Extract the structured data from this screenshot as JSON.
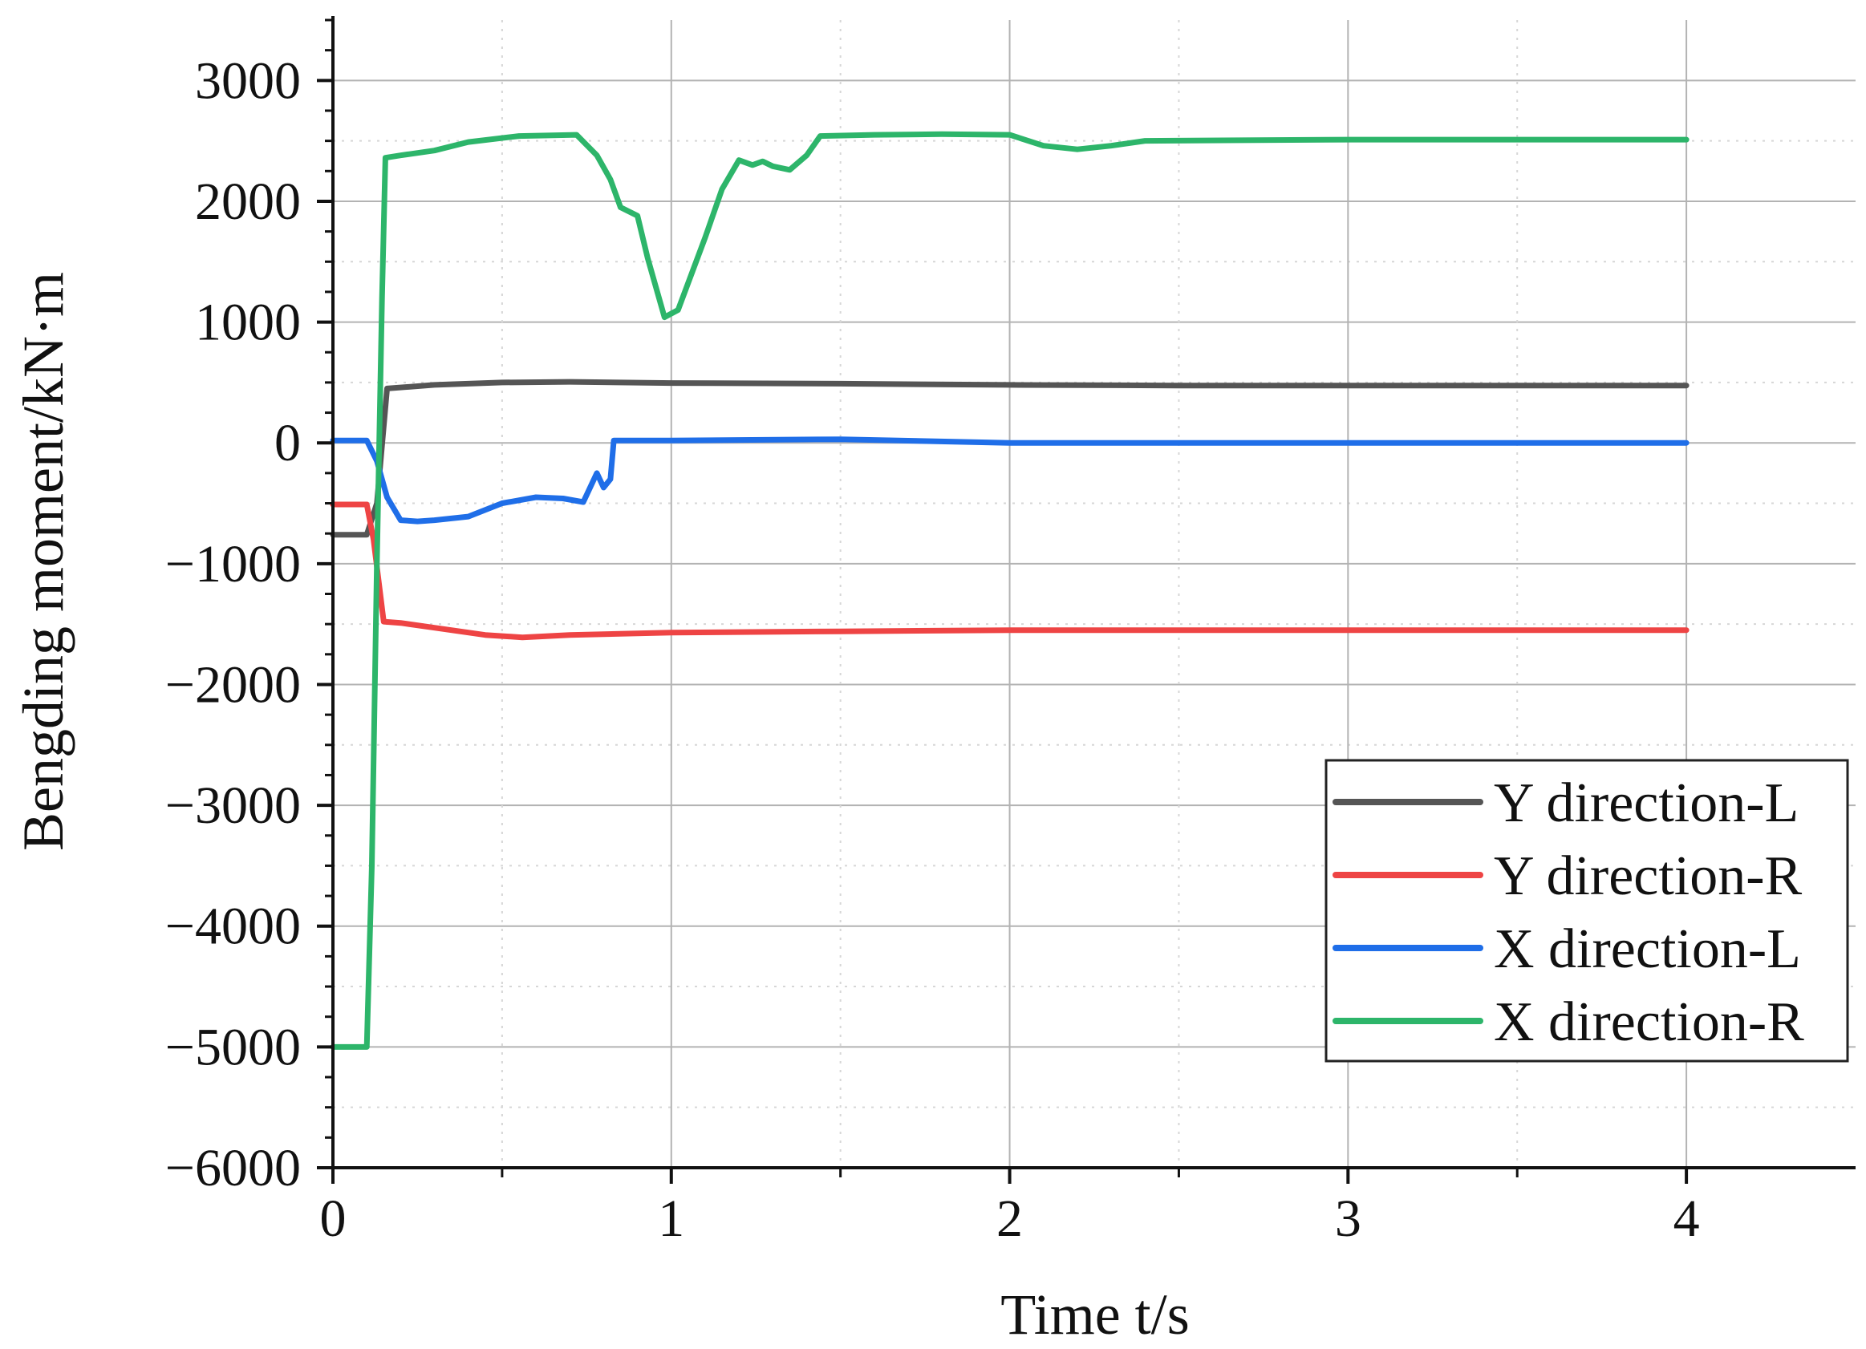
{
  "chart_data": {
    "type": "line",
    "title": "",
    "xlabel": "Time t/s",
    "ylabel": "Bengding moment/kN·m",
    "xlim": [
      0,
      4.5
    ],
    "ylim": [
      -6000,
      3500
    ],
    "xticks": [
      0,
      1,
      2,
      3,
      4
    ],
    "xtick_labels": [
      "0",
      "1",
      "2",
      "3",
      "4"
    ],
    "yticks": [
      3000,
      2000,
      1000,
      0,
      -1000,
      -2000,
      -3000,
      -4000,
      -5000,
      -6000
    ],
    "ytick_labels": [
      "3000",
      "2000",
      "1000",
      "0",
      "−1000",
      "−2000",
      "−3000",
      "−4000",
      "−5000",
      "−6000"
    ],
    "grid": true,
    "legend_position": "lower-right",
    "series": [
      {
        "name": "Y direction-L",
        "color": "#555555",
        "points": [
          [
            0,
            -760
          ],
          [
            0.1,
            -760
          ],
          [
            0.13,
            -500
          ],
          [
            0.16,
            450
          ],
          [
            0.3,
            480
          ],
          [
            0.5,
            500
          ],
          [
            0.7,
            505
          ],
          [
            1.0,
            495
          ],
          [
            1.5,
            490
          ],
          [
            2.0,
            480
          ],
          [
            2.5,
            475
          ],
          [
            3.0,
            475
          ],
          [
            3.5,
            475
          ],
          [
            4.0,
            475
          ]
        ]
      },
      {
        "name": "Y direction-R",
        "color": "#ee4444",
        "points": [
          [
            0,
            -510
          ],
          [
            0.1,
            -510
          ],
          [
            0.12,
            -800
          ],
          [
            0.15,
            -1480
          ],
          [
            0.2,
            -1490
          ],
          [
            0.3,
            -1530
          ],
          [
            0.45,
            -1590
          ],
          [
            0.56,
            -1610
          ],
          [
            0.7,
            -1590
          ],
          [
            1.0,
            -1570
          ],
          [
            1.5,
            -1560
          ],
          [
            2.0,
            -1550
          ],
          [
            2.5,
            -1550
          ],
          [
            3.0,
            -1550
          ],
          [
            4.0,
            -1550
          ]
        ]
      },
      {
        "name": "X direction-L",
        "color": "#1f6ee8",
        "points": [
          [
            0,
            20
          ],
          [
            0.1,
            20
          ],
          [
            0.13,
            -150
          ],
          [
            0.16,
            -450
          ],
          [
            0.2,
            -640
          ],
          [
            0.25,
            -650
          ],
          [
            0.3,
            -640
          ],
          [
            0.4,
            -610
          ],
          [
            0.5,
            -500
          ],
          [
            0.6,
            -450
          ],
          [
            0.68,
            -460
          ],
          [
            0.74,
            -490
          ],
          [
            0.78,
            -250
          ],
          [
            0.8,
            -370
          ],
          [
            0.82,
            -300
          ],
          [
            0.83,
            20
          ],
          [
            1.0,
            20
          ],
          [
            1.5,
            30
          ],
          [
            2.0,
            0
          ],
          [
            2.5,
            0
          ],
          [
            3.0,
            0
          ],
          [
            3.5,
            0
          ],
          [
            4.0,
            0
          ]
        ]
      },
      {
        "name": "X direction-R",
        "color": "#2db56a",
        "points": [
          [
            0,
            -5000
          ],
          [
            0.1,
            -5000
          ],
          [
            0.115,
            -3500
          ],
          [
            0.13,
            -1000
          ],
          [
            0.145,
            1200
          ],
          [
            0.155,
            2360
          ],
          [
            0.2,
            2380
          ],
          [
            0.3,
            2420
          ],
          [
            0.4,
            2490
          ],
          [
            0.55,
            2540
          ],
          [
            0.72,
            2550
          ],
          [
            0.78,
            2380
          ],
          [
            0.82,
            2180
          ],
          [
            0.85,
            1950
          ],
          [
            0.9,
            1880
          ],
          [
            0.93,
            1530
          ],
          [
            0.98,
            1040
          ],
          [
            1.02,
            1100
          ],
          [
            1.1,
            1700
          ],
          [
            1.15,
            2100
          ],
          [
            1.2,
            2340
          ],
          [
            1.24,
            2300
          ],
          [
            1.27,
            2330
          ],
          [
            1.3,
            2290
          ],
          [
            1.35,
            2260
          ],
          [
            1.4,
            2380
          ],
          [
            1.44,
            2540
          ],
          [
            1.6,
            2550
          ],
          [
            1.8,
            2555
          ],
          [
            2.0,
            2550
          ],
          [
            2.1,
            2460
          ],
          [
            2.2,
            2430
          ],
          [
            2.3,
            2460
          ],
          [
            2.4,
            2500
          ],
          [
            3.0,
            2510
          ],
          [
            4.0,
            2510
          ]
        ]
      }
    ]
  }
}
